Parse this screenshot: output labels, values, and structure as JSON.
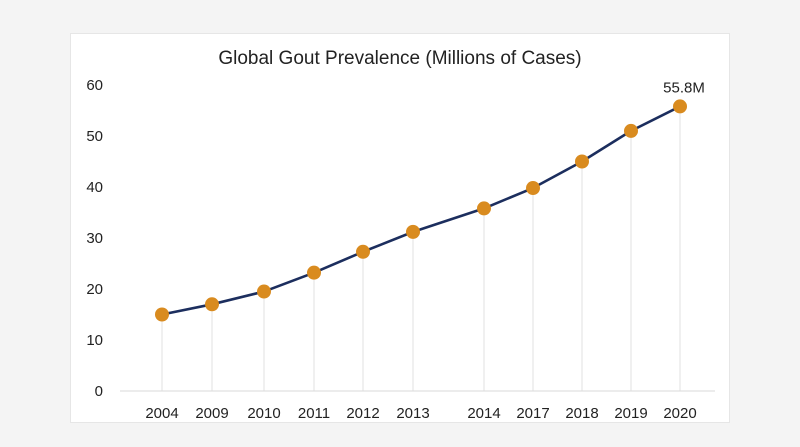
{
  "chart_data": {
    "type": "line",
    "title": "Global Gout Prevalence (Millions of Cases)",
    "categories": [
      "2004",
      "2009",
      "2010",
      "2011",
      "2012",
      "2013",
      "2014",
      "2017",
      "2018",
      "2019",
      "2020"
    ],
    "x": [
      2004,
      2009,
      2010,
      2011,
      2012,
      2013,
      2014,
      2017,
      2018,
      2019,
      2020
    ],
    "series": [
      {
        "values": [
          15.0,
          17.0,
          19.5,
          23.2,
          27.3,
          31.2,
          35.8,
          39.8,
          45.0,
          51.0,
          55.8
        ]
      }
    ],
    "ylim": [
      0,
      60
    ],
    "yticks": [
      0,
      10,
      20,
      30,
      40,
      50,
      60
    ],
    "annotations": [
      {
        "category": "2020",
        "text": "55.8M"
      }
    ],
    "grid": false,
    "drop_lines": true,
    "colors": {
      "line": "#1c2e5e",
      "marker": "#d98b1f",
      "drop_line": "#e2e2e2",
      "axis": "#d9d9d9"
    }
  }
}
